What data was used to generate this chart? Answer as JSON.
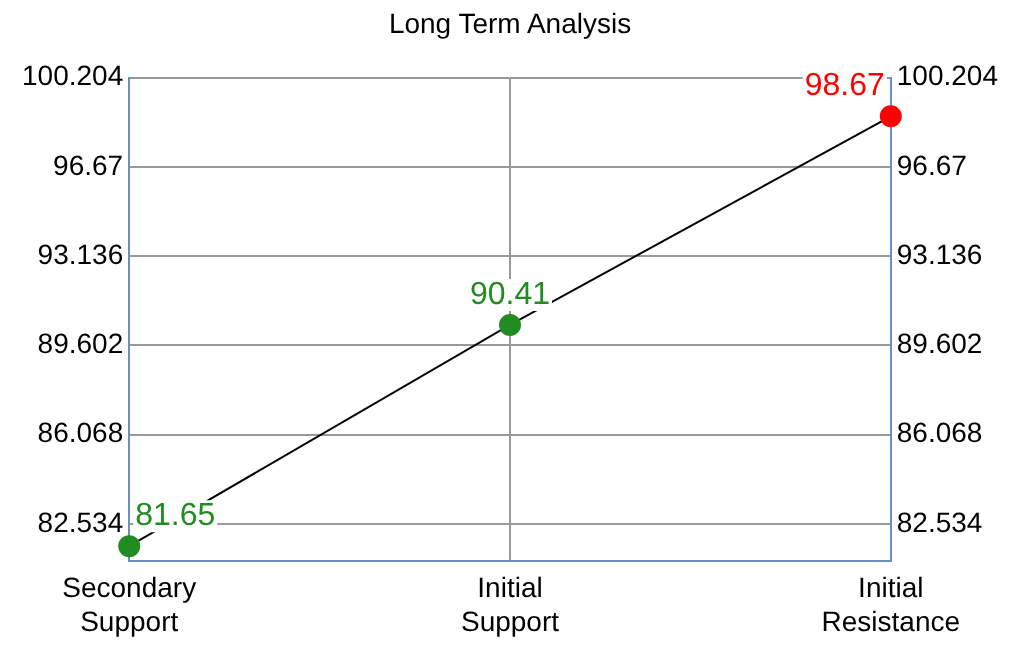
{
  "chart_data": {
    "type": "line",
    "title": "Long Term Analysis",
    "categories": [
      "Secondary Support",
      "Initial Support",
      "Initial Resistance"
    ],
    "series": [
      {
        "color": "#000000",
        "colors": [
          "#228b22",
          "#228b22",
          "#ff0000"
        ],
        "values": [
          81.65,
          90.41,
          98.67
        ]
      }
    ],
    "ylim": [
      81.07,
      100.204
    ],
    "yticks": [
      82.534,
      86.068,
      89.602,
      93.136,
      96.67,
      100.204
    ],
    "y2lim": [
      81.07,
      100.204
    ],
    "y2ticks": [
      82.534,
      86.068,
      89.602,
      93.136,
      96.67,
      100.204
    ],
    "grid": true,
    "legend": false,
    "marker": "circle",
    "line_style": "solid",
    "data_labels": true
  }
}
